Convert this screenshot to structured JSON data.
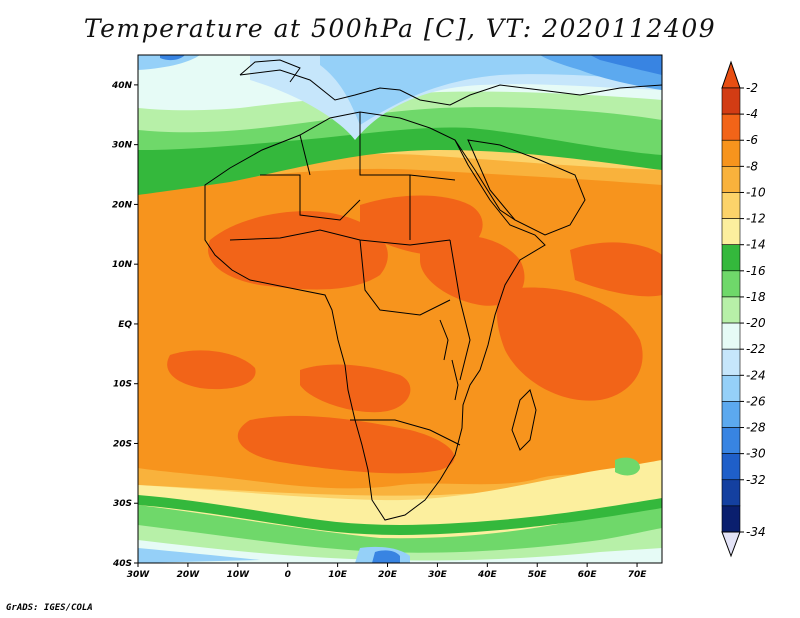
{
  "title": "Temperature at 500hPa [C], VT: 2020112409",
  "credit": "GrADS: IGES/COLA",
  "map": {
    "lon_range": [
      -30,
      75
    ],
    "lat_range": [
      -40,
      45
    ],
    "lon_ticks": [
      {
        "value": -30,
        "label": "30W"
      },
      {
        "value": -20,
        "label": "20W"
      },
      {
        "value": -10,
        "label": "10W"
      },
      {
        "value": 0,
        "label": "0"
      },
      {
        "value": 10,
        "label": "10E"
      },
      {
        "value": 20,
        "label": "20E"
      },
      {
        "value": 30,
        "label": "30E"
      },
      {
        "value": 40,
        "label": "40E"
      },
      {
        "value": 50,
        "label": "50E"
      },
      {
        "value": 60,
        "label": "60E"
      },
      {
        "value": 70,
        "label": "70E"
      }
    ],
    "lat_ticks": [
      {
        "value": 40,
        "label": "40N"
      },
      {
        "value": 30,
        "label": "30N"
      },
      {
        "value": 20,
        "label": "20N"
      },
      {
        "value": 10,
        "label": "10N"
      },
      {
        "value": 0,
        "label": "EQ"
      },
      {
        "value": -10,
        "label": "10S"
      },
      {
        "value": -20,
        "label": "20S"
      },
      {
        "value": -30,
        "label": "30S"
      },
      {
        "value": -40,
        "label": "40S"
      }
    ]
  },
  "colorbar": {
    "levels": [
      {
        "label": "-2",
        "color": "#d23c14"
      },
      {
        "label": "-4",
        "color": "#f26418"
      },
      {
        "label": "-6",
        "color": "#f7941d"
      },
      {
        "label": "-8",
        "color": "#f9b23c"
      },
      {
        "label": "-10",
        "color": "#fcd36a"
      },
      {
        "label": "-12",
        "color": "#fcef9e"
      },
      {
        "label": "-14",
        "color": "#34b83c"
      },
      {
        "label": "-16",
        "color": "#6fd86a"
      },
      {
        "label": "-18",
        "color": "#b7f0a8"
      },
      {
        "label": "-20",
        "color": "#e6fbf6"
      },
      {
        "label": "-22",
        "color": "#c6e6fb"
      },
      {
        "label": "-24",
        "color": "#95d0f8"
      },
      {
        "label": "-26",
        "color": "#5ca9ef"
      },
      {
        "label": "-28",
        "color": "#3884e2"
      },
      {
        "label": "-30",
        "color": "#1f5fc9"
      },
      {
        "label": "-32",
        "color": "#1440a0"
      },
      {
        "label": "-34",
        "color": "#0a1f6e"
      }
    ],
    "over_color": "#e84e12",
    "under_color": "#e3e3f7"
  }
}
